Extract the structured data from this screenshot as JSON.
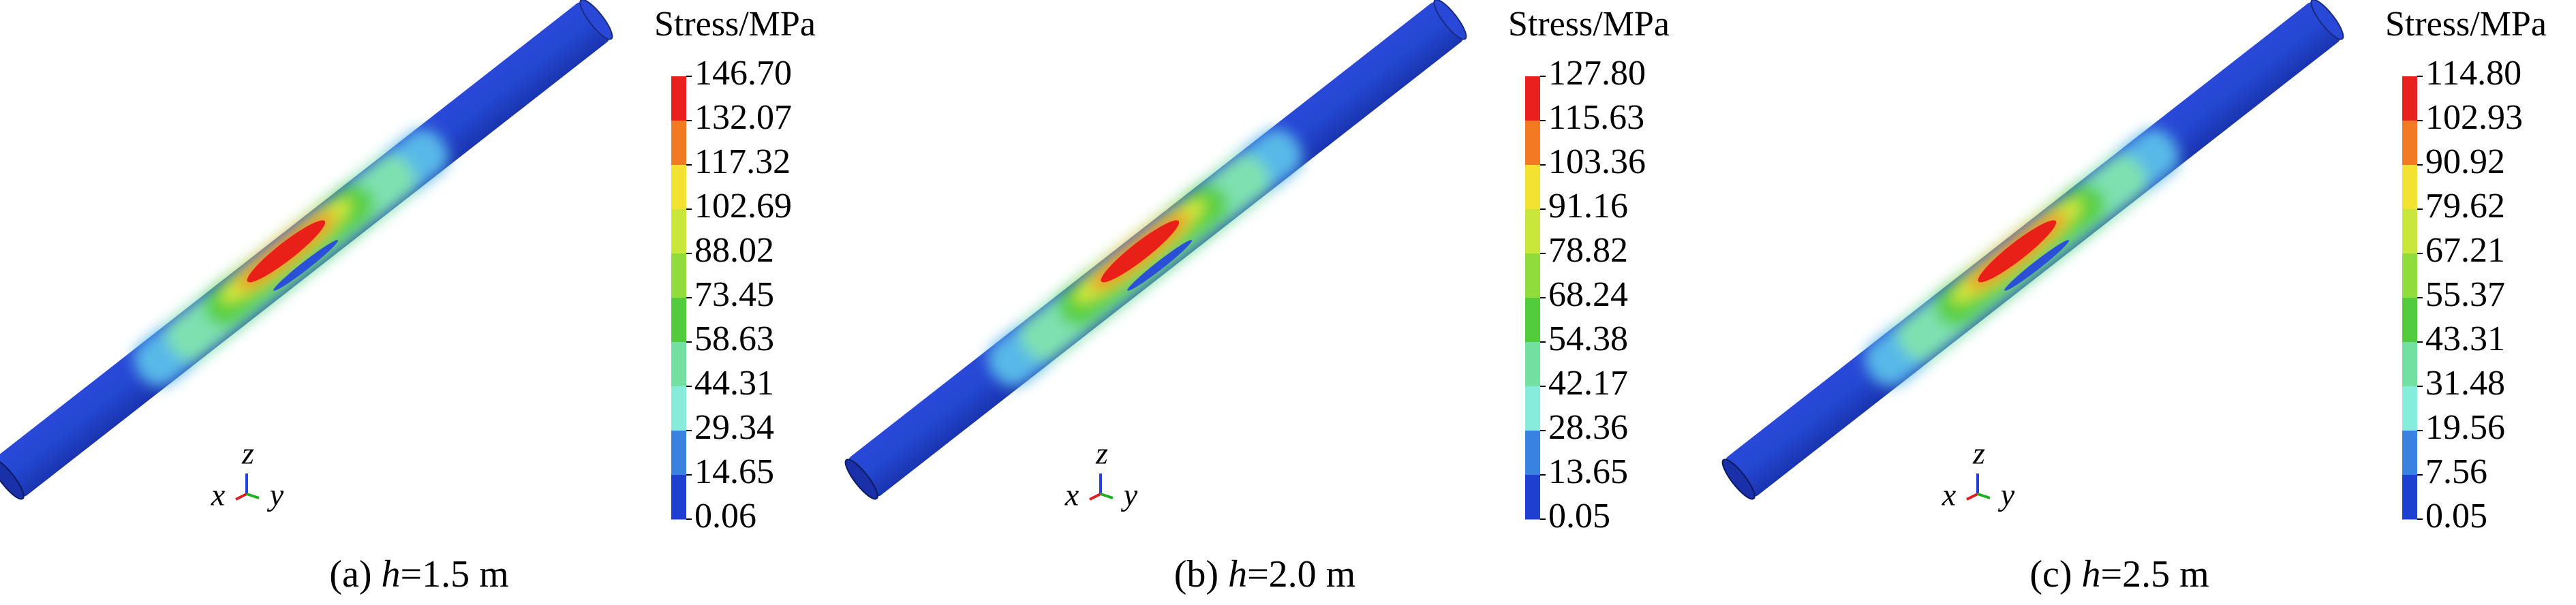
{
  "panels": [
    {
      "caption": {
        "label": "(a)",
        "variable": "h",
        "value": "=1.5 m"
      },
      "legend": {
        "title": "Stress/MPa",
        "ticks": [
          "146.70",
          "132.07",
          "117.32",
          "102.69",
          "88.02",
          "73.45",
          "58.63",
          "44.31",
          "29.34",
          "14.65",
          "0.06"
        ]
      },
      "triad": {
        "z": "z",
        "x": "x",
        "y": "y"
      }
    },
    {
      "caption": {
        "label": "(b)",
        "variable": "h",
        "value": "=2.0 m"
      },
      "legend": {
        "title": "Stress/MPa",
        "ticks": [
          "127.80",
          "115.63",
          "103.36",
          "91.16",
          "78.82",
          "68.24",
          "54.38",
          "42.17",
          "28.36",
          "13.65",
          "0.05"
        ]
      },
      "triad": {
        "z": "z",
        "x": "x",
        "y": "y"
      }
    },
    {
      "caption": {
        "label": "(c)",
        "variable": "h",
        "value": "=2.5 m"
      },
      "legend": {
        "title": "Stress/MPa",
        "ticks": [
          "114.80",
          "102.93",
          "90.92",
          "79.62",
          "67.21",
          "55.37",
          "43.31",
          "31.48",
          "19.56",
          "7.56",
          "0.05"
        ]
      },
      "triad": {
        "z": "z",
        "x": "x",
        "y": "y"
      }
    }
  ],
  "colorbar_colors": [
    "#e8201e",
    "#f27a22",
    "#f2e232",
    "#c9e63a",
    "#8fdc3a",
    "#52cc3c",
    "#72e0a0",
    "#86ecdc",
    "#3a82e2",
    "#1f3fd0"
  ]
}
